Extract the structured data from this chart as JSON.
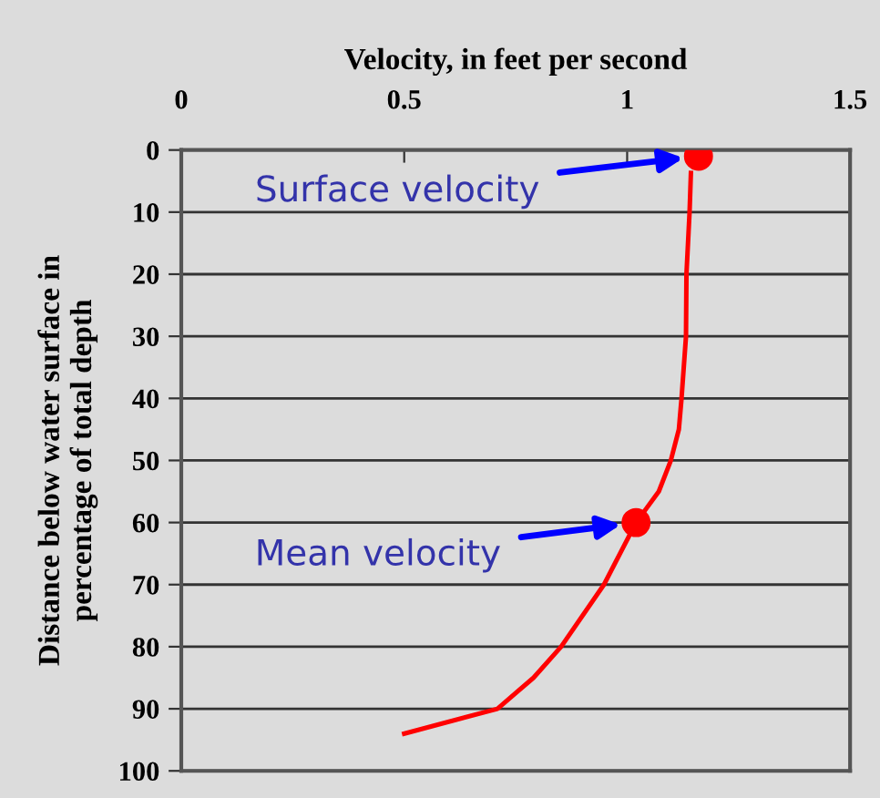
{
  "chart_data": {
    "type": "line",
    "xlabel": "Velocity, in feet per second",
    "ylabel": "Distance below water surface in\npercentage of total depth",
    "xlim": [
      0,
      1.5
    ],
    "xticks": [
      0,
      0.5,
      1,
      1.5
    ],
    "ylim": [
      100,
      0
    ],
    "yticks": [
      0,
      10,
      20,
      30,
      40,
      50,
      60,
      70,
      80,
      90,
      100
    ],
    "grid": "y",
    "marker": "none",
    "line_style": "solid",
    "series": [
      {
        "color": "#ff0000",
        "x": [
          1.143,
          1.14,
          1.133,
          1.132,
          1.122,
          1.116,
          1.098,
          1.071,
          1.02,
          0.948,
          0.852,
          0.79,
          0.709,
          0.5
        ],
        "values": [
          3.7,
          10,
          20,
          30,
          40,
          45,
          50,
          55,
          60,
          70,
          80,
          85,
          90,
          94
        ]
      },
      {
        "type": "scatter",
        "color": "#ff0000",
        "marker": "circle",
        "x": [
          1.16,
          1.02
        ],
        "values": [
          1,
          60
        ]
      }
    ],
    "annotations": [
      "Surface velocity",
      "Mean velocity"
    ]
  }
}
